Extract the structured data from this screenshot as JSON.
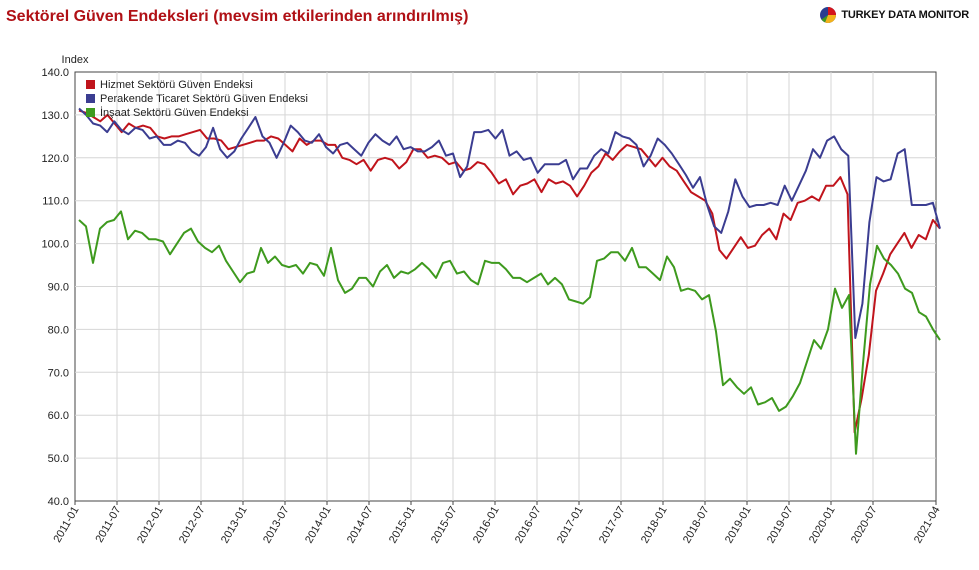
{
  "header": {
    "title": "Sektörel Güven Endeksleri (mevsim etkilerinden arındırılmış)",
    "brand": "TURKEY DATA MONITOR",
    "brand_icon": "pie-logo-icon"
  },
  "colors": {
    "hizmet": "#c0141c",
    "perakende": "#3b3d91",
    "insaat": "#3e9a1e",
    "grid": "#d6d6d6",
    "axis": "#444444"
  },
  "chart_data": {
    "type": "line",
    "title": "Sektörel Güven Endeksleri (mevsim etkilerinden arındırılmış)",
    "ylabel": "Index",
    "xlabel": "",
    "ylim": [
      40,
      140
    ],
    "yticks": [
      "40.0",
      "50.0",
      "60.0",
      "70.0",
      "80.0",
      "90.0",
      "100.0",
      "110.0",
      "120.0",
      "130.0",
      "140.0"
    ],
    "xticks": [
      "2011-01",
      "2011-07",
      "2012-01",
      "2012-07",
      "2013-01",
      "2013-07",
      "2014-01",
      "2014-07",
      "2015-01",
      "2015-07",
      "2016-01",
      "2016-07",
      "2017-01",
      "2017-07",
      "2018-01",
      "2018-07",
      "2019-01",
      "2019-07",
      "2020-01",
      "2020-07",
      "2021-04"
    ],
    "x_start": "2011-01",
    "x_end": "2021-04",
    "grid": true,
    "legend_position": "top-left",
    "series": [
      {
        "name": "Hizmet Sektörü Güven Endeksi",
        "values": [
          131,
          130.5,
          129.5,
          128.5,
          130,
          128,
          126,
          128,
          127,
          127.5,
          127,
          125,
          124.5,
          125,
          125,
          125.5,
          126,
          126.5,
          124.5,
          124.5,
          124,
          122,
          122.5,
          123,
          123.5,
          124,
          124,
          125,
          124.5,
          123,
          121.5,
          124.5,
          123,
          124,
          124,
          123,
          123,
          120,
          119.5,
          118.5,
          119.5,
          117,
          119.5,
          120,
          119.5,
          117.5,
          119,
          122,
          122,
          120,
          120.5,
          120,
          118.5,
          119,
          117,
          117.5,
          119,
          118.5,
          116.5,
          114,
          115,
          111.5,
          113.5,
          114,
          115,
          112,
          115,
          114,
          114.5,
          113.5,
          111,
          113.5,
          116.5,
          118,
          121,
          119.5,
          121.5,
          123,
          122.5,
          122,
          120,
          118,
          120,
          118,
          117,
          114.5,
          112,
          111,
          110,
          107,
          98.5,
          96.5,
          99,
          101.5,
          99,
          99.5,
          102,
          103.5,
          101,
          107,
          105.5,
          109.5,
          110,
          111,
          110,
          113.5,
          113.5,
          115.5,
          111.5,
          56,
          64,
          74,
          89,
          93,
          97.5,
          100,
          102.5,
          99,
          102,
          101,
          105.5,
          103.5
        ]
      },
      {
        "name": "Perakende Ticaret Sektörü Güven Endeksi",
        "values": [
          131.5,
          130,
          128,
          127.5,
          126,
          128.5,
          126.5,
          125.5,
          127,
          126.5,
          124.5,
          125,
          123,
          123,
          124,
          123.5,
          121.5,
          120.5,
          122.5,
          127,
          122,
          120,
          121.5,
          124.5,
          127,
          129.5,
          125,
          123.5,
          120,
          123.5,
          127.5,
          126,
          124,
          123.5,
          125.5,
          122.5,
          121,
          123,
          123.5,
          122,
          120.5,
          123.5,
          125.5,
          124,
          123,
          125,
          122,
          122.5,
          121.5,
          121.5,
          122.5,
          124,
          120.5,
          121,
          115.5,
          118,
          126,
          126,
          126.5,
          124.5,
          126.5,
          120.5,
          121.5,
          119.5,
          120,
          116.5,
          118.5,
          118.5,
          118.5,
          119.5,
          115,
          117.5,
          117.5,
          120.5,
          122,
          121,
          126,
          125,
          124.5,
          123,
          118,
          120.5,
          124.5,
          123,
          121,
          118.5,
          116,
          113,
          115.5,
          109,
          104,
          102.5,
          107.5,
          115,
          111,
          108.5,
          109,
          109,
          109.5,
          109,
          113.5,
          110,
          113.5,
          117,
          122,
          120,
          124,
          125,
          122,
          120.5,
          78,
          86,
          105,
          115.5,
          114.5,
          115,
          121,
          122,
          109,
          109,
          109,
          109.5,
          103.5
        ]
      },
      {
        "name": "İnşaat Sektörü Güven Endeksi",
        "values": [
          105.5,
          104,
          95.5,
          103.5,
          105,
          105.5,
          107.5,
          101,
          103,
          102.5,
          101,
          101,
          100.5,
          97.5,
          100,
          102.5,
          103.5,
          100.5,
          99,
          98,
          99.5,
          96,
          93.5,
          91,
          93,
          93.5,
          99,
          95.5,
          97,
          95,
          94.5,
          95,
          93,
          95.5,
          95,
          92.5,
          99,
          91.5,
          88.5,
          89.5,
          92,
          92,
          90,
          93.5,
          95,
          92,
          93.5,
          93,
          94,
          95.5,
          94,
          92,
          95.5,
          96,
          93,
          93.5,
          91.5,
          90.5,
          96,
          95.5,
          95.5,
          94,
          92,
          92,
          91,
          92,
          93,
          90.5,
          92,
          90.5,
          87,
          86.5,
          86,
          87.5,
          96,
          96.5,
          98,
          98,
          96,
          99,
          94.5,
          94.5,
          93,
          91.5,
          97,
          94.5,
          89,
          89.5,
          89,
          87,
          88,
          79.5,
          67,
          68.5,
          66.5,
          65,
          66.5,
          62.5,
          63,
          64,
          61,
          62,
          64.5,
          67.5,
          72.5,
          77.5,
          75.5,
          80,
          89.5,
          85,
          88,
          51,
          72,
          90.5,
          99.5,
          96.5,
          95,
          93,
          89.5,
          88.5,
          84,
          83,
          80,
          77.5
        ]
      }
    ]
  }
}
